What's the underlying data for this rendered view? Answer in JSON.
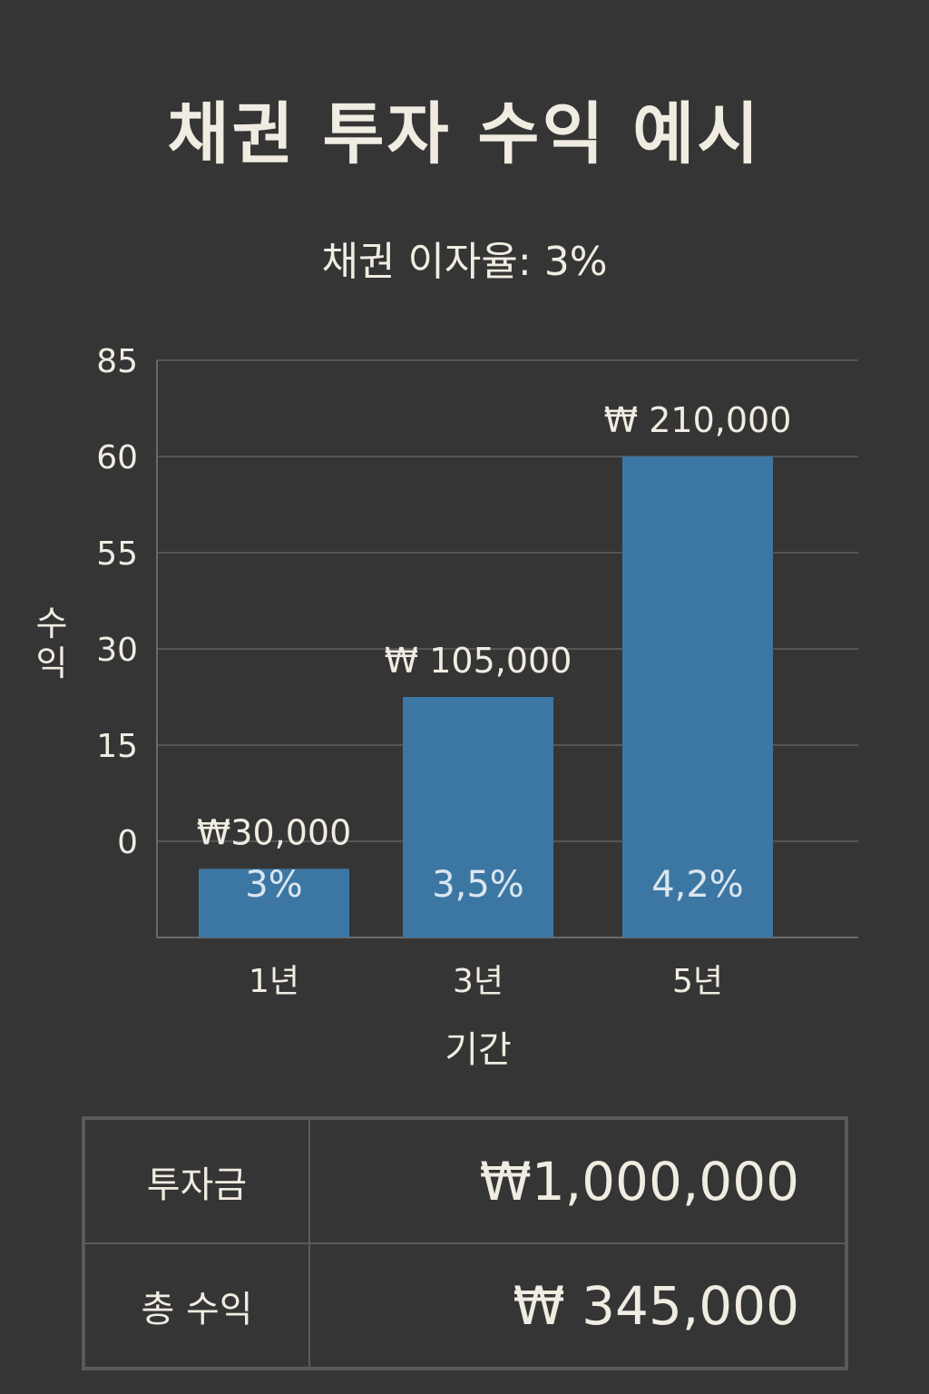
{
  "title": "채권 투자 수익 예시",
  "subtitle": "채권 이자율: 3%",
  "chart_data": {
    "type": "bar",
    "title": "채권 투자 수익 예시",
    "subtitle": "채권 이자율: 3%",
    "xlabel": "기간",
    "ylabel": "수익",
    "categories": [
      "1년",
      "3년",
      "5년"
    ],
    "yticks": [
      "85",
      "60",
      "55",
      "30",
      "15",
      "0"
    ],
    "series": [
      {
        "values": [
          30000,
          105000,
          210000
        ],
        "value_labels": [
          "₩30,000",
          "₩ 105,000",
          "₩ 210,000"
        ],
        "rate_labels": [
          "3%",
          "3,5%",
          "4,2%"
        ]
      }
    ],
    "grid": true,
    "legend": "none",
    "bar_color": "#3c77a4",
    "grid_color": "#555555",
    "axis_color": "#6a6a6a",
    "text_color": "#f1ece2",
    "rate_text_color": "#dce6ee"
  },
  "summary": {
    "rows": [
      {
        "label": "투자금",
        "value": "₩1,000,000"
      },
      {
        "label": "총 수익",
        "value": "₩ 345,000"
      }
    ]
  }
}
